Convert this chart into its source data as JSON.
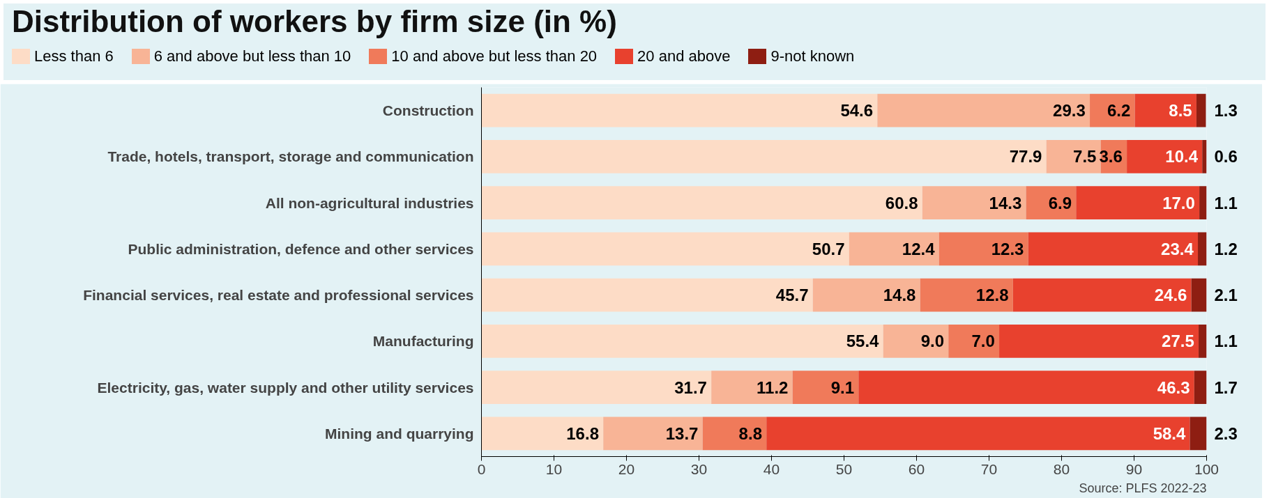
{
  "chart_data": {
    "type": "bar",
    "orientation": "horizontal",
    "stacked": true,
    "title": "Distribution of workers by firm size (in %)",
    "categories": [
      "Construction",
      "Trade, hotels, transport, storage and communication",
      "All non-agricultural industries",
      "Public administration, defence and other services",
      "Financial services, real estate and professional services",
      "Manufacturing",
      "Electricity, gas, water supply and other utility services",
      "Mining and quarrying"
    ],
    "series": [
      {
        "name": "Less than 6",
        "color": "#fddcc6",
        "values": [
          54.6,
          77.9,
          60.8,
          50.7,
          45.7,
          55.4,
          31.7,
          16.8
        ],
        "value_labels": [
          "54.6",
          "77.9",
          "60.8",
          "50.7",
          "45.7",
          "55.4",
          "31.7",
          "16.8"
        ]
      },
      {
        "name": "6 and above but less than 10",
        "color": "#f8b496",
        "values": [
          29.3,
          7.5,
          14.3,
          12.4,
          14.8,
          9.0,
          11.2,
          13.7
        ],
        "value_labels": [
          "29.3",
          "7.5",
          "14.3",
          "12.4",
          "14.8",
          "9.0",
          "11.2",
          "13.7"
        ]
      },
      {
        "name": "10 and above but less than 20",
        "color": "#f07a5a",
        "values": [
          6.2,
          3.6,
          6.9,
          12.3,
          12.8,
          7.0,
          9.1,
          8.8
        ],
        "value_labels": [
          "6.2",
          "3.6",
          "6.9",
          "12.3",
          "12.8",
          "7.0",
          "9.1",
          "8.8"
        ]
      },
      {
        "name": "20 and above",
        "color": "#e8412e",
        "values": [
          8.5,
          10.4,
          17.0,
          23.4,
          24.6,
          27.5,
          46.3,
          58.4
        ],
        "value_labels": [
          "8.5",
          "10.4",
          "17.0",
          "23.4",
          "24.6",
          "27.5",
          "46.3",
          "58.4"
        ]
      },
      {
        "name": "9-not known",
        "color": "#8e1e12",
        "values": [
          1.3,
          0.6,
          1.1,
          1.2,
          2.1,
          1.1,
          1.7,
          2.3
        ],
        "value_labels": [
          "1.3",
          "0.6",
          "1.1",
          "1.2",
          "2.1",
          "1.1",
          "1.7",
          "2.3"
        ]
      }
    ],
    "xlim": [
      0,
      100
    ],
    "xticks": [
      0,
      10,
      20,
      30,
      40,
      50,
      60,
      70,
      80,
      90,
      100
    ],
    "grid": false,
    "legend": "top",
    "annotations": [
      "Source: PLFS 2022-23"
    ]
  }
}
